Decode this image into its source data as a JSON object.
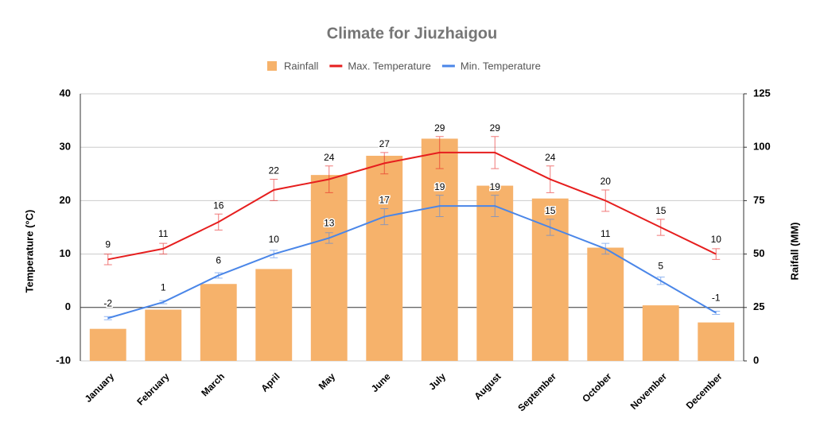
{
  "chart_data": {
    "type": "bar-line",
    "title": "Climate for Jiuzhaigou",
    "y_label": "Temperature (°C)",
    "y2_label": "Raifall (MM)",
    "categories": [
      "January",
      "February",
      "March",
      "April",
      "May",
      "June",
      "July",
      "August",
      "September",
      "October",
      "November",
      "December"
    ],
    "series": [
      {
        "name": "Rainfall",
        "type": "bar",
        "axis": "y2",
        "color": "#f6b26b",
        "values": [
          15,
          24,
          36,
          43,
          87,
          96,
          104,
          82,
          76,
          53,
          26,
          18
        ]
      },
      {
        "name": "Max. Temperature",
        "type": "line",
        "color": "#e61e1e",
        "values": [
          9,
          11,
          16,
          22,
          24,
          27,
          29,
          29,
          24,
          20,
          15,
          10
        ],
        "errors": [
          1,
          1,
          1.5,
          2,
          2.5,
          2,
          3,
          3,
          2.5,
          2,
          1.5,
          1
        ]
      },
      {
        "name": "Min. Temperature",
        "type": "line",
        "color": "#4a86e8",
        "values": [
          -2,
          1,
          6,
          10,
          13,
          17,
          19,
          19,
          15,
          11,
          5,
          -1
        ],
        "errors": [
          0.3,
          0.3,
          0.5,
          0.7,
          1,
          1.5,
          2,
          2,
          1.5,
          1,
          0.7,
          0.3
        ]
      }
    ],
    "ylim": [
      -10,
      40
    ],
    "yticks": [
      -10,
      0,
      10,
      20,
      30,
      40
    ],
    "y2lim": [
      0,
      125
    ],
    "y2ticks": [
      0,
      25,
      50,
      75,
      100,
      125
    ],
    "grid": true
  }
}
